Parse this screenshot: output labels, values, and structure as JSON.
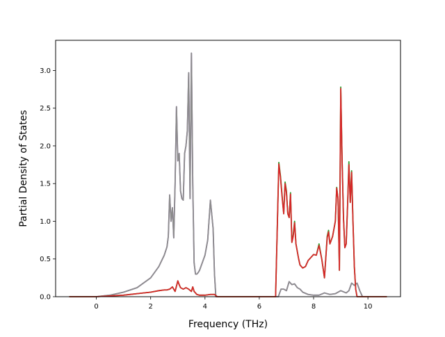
{
  "chart_data": {
    "type": "line",
    "xlabel": "Frequency (THz)",
    "ylabel": "Partial Density of States",
    "xlim": [
      -1.5,
      11.2
    ],
    "ylim": [
      0.0,
      3.4
    ],
    "xticks": [
      0,
      2,
      4,
      6,
      8,
      10
    ],
    "yticks": [
      0.0,
      0.5,
      1.0,
      1.5,
      2.0,
      2.5,
      3.0
    ],
    "xtick_labels": [
      "0",
      "2",
      "4",
      "6",
      "8",
      "10"
    ],
    "ytick_labels": [
      "0.0",
      "0.5",
      "1.0",
      "1.5",
      "2.0",
      "2.5",
      "3.0"
    ],
    "grid": false,
    "legend": "none",
    "series": [
      {
        "color": "#9467bd",
        "x": [
          -1.0,
          0.0,
          0.5,
          1.0,
          1.5,
          2.0,
          2.3,
          2.5,
          2.6,
          2.65,
          2.7,
          2.75,
          2.8,
          2.85,
          2.9,
          2.95,
          3.0,
          3.05,
          3.1,
          3.15,
          3.2,
          3.25,
          3.3,
          3.35,
          3.4,
          3.45,
          3.5,
          3.55,
          3.6,
          3.65,
          3.7,
          3.75,
          3.8,
          3.9,
          4.0,
          4.1,
          4.2,
          4.3,
          4.35,
          4.4,
          4.45,
          4.5,
          6.5,
          6.7,
          6.8,
          6.9,
          7.0,
          7.1,
          7.2,
          7.3,
          7.4,
          7.5,
          7.6,
          7.8,
          8.0,
          8.2,
          8.4,
          8.6,
          8.8,
          9.0,
          9.2,
          9.3,
          9.4,
          9.5,
          9.6,
          9.7,
          9.8,
          10.0,
          10.7
        ],
        "y": [
          0.0,
          0.0,
          0.02,
          0.06,
          0.12,
          0.25,
          0.4,
          0.55,
          0.66,
          0.8,
          1.35,
          1.0,
          1.18,
          0.78,
          1.5,
          2.52,
          1.8,
          1.9,
          1.4,
          1.3,
          1.28,
          1.9,
          2.0,
          2.2,
          2.97,
          1.3,
          3.23,
          1.5,
          0.45,
          0.3,
          0.3,
          0.32,
          0.35,
          0.45,
          0.55,
          0.75,
          1.28,
          0.9,
          0.3,
          0.0,
          0.0,
          0.0,
          0.0,
          0.0,
          0.1,
          0.1,
          0.08,
          0.2,
          0.16,
          0.17,
          0.12,
          0.1,
          0.06,
          0.03,
          0.02,
          0.02,
          0.05,
          0.03,
          0.04,
          0.08,
          0.05,
          0.08,
          0.18,
          0.15,
          0.18,
          0.08,
          0.0,
          0.0,
          0.0
        ]
      },
      {
        "color": "#8c8c8c",
        "x": [
          -1.0,
          0.0,
          0.5,
          1.0,
          1.5,
          2.0,
          2.3,
          2.5,
          2.6,
          2.65,
          2.7,
          2.75,
          2.8,
          2.85,
          2.9,
          2.95,
          3.0,
          3.05,
          3.1,
          3.15,
          3.2,
          3.25,
          3.3,
          3.35,
          3.4,
          3.45,
          3.5,
          3.55,
          3.6,
          3.65,
          3.7,
          3.75,
          3.8,
          3.9,
          4.0,
          4.1,
          4.2,
          4.3,
          4.35,
          4.4,
          4.45,
          4.5,
          6.5,
          6.7,
          6.8,
          6.9,
          7.0,
          7.1,
          7.2,
          7.3,
          7.4,
          7.5,
          7.6,
          7.8,
          8.0,
          8.2,
          8.4,
          8.6,
          8.8,
          9.0,
          9.2,
          9.3,
          9.4,
          9.5,
          9.6,
          9.7,
          9.8,
          10.0,
          10.7
        ],
        "y": [
          0.0,
          0.0,
          0.02,
          0.06,
          0.12,
          0.25,
          0.4,
          0.55,
          0.66,
          0.8,
          1.35,
          1.0,
          1.18,
          0.78,
          1.5,
          2.52,
          1.8,
          1.9,
          1.4,
          1.3,
          1.28,
          1.9,
          2.0,
          2.2,
          2.97,
          1.3,
          3.23,
          1.5,
          0.45,
          0.3,
          0.3,
          0.32,
          0.35,
          0.45,
          0.55,
          0.75,
          1.28,
          0.9,
          0.3,
          0.0,
          0.0,
          0.0,
          0.0,
          0.0,
          0.1,
          0.1,
          0.08,
          0.2,
          0.16,
          0.17,
          0.12,
          0.1,
          0.06,
          0.03,
          0.02,
          0.02,
          0.05,
          0.03,
          0.04,
          0.08,
          0.05,
          0.08,
          0.18,
          0.15,
          0.18,
          0.08,
          0.0,
          0.0,
          0.0
        ]
      },
      {
        "color": "#2ca02c",
        "x": [
          -1.0,
          0.0,
          0.5,
          1.0,
          1.5,
          2.0,
          2.3,
          2.5,
          2.6,
          2.7,
          2.8,
          2.9,
          3.0,
          3.05,
          3.1,
          3.2,
          3.3,
          3.4,
          3.5,
          3.55,
          3.6,
          3.7,
          3.8,
          4.0,
          4.2,
          4.35,
          4.45,
          6.6,
          6.72,
          6.78,
          6.85,
          6.9,
          6.95,
          7.0,
          7.05,
          7.1,
          7.15,
          7.2,
          7.25,
          7.3,
          7.35,
          7.4,
          7.45,
          7.5,
          7.6,
          7.7,
          7.8,
          7.9,
          8.0,
          8.1,
          8.2,
          8.3,
          8.4,
          8.5,
          8.55,
          8.6,
          8.7,
          8.8,
          8.85,
          8.9,
          8.95,
          9.0,
          9.05,
          9.1,
          9.15,
          9.2,
          9.25,
          9.3,
          9.35,
          9.4,
          9.45,
          9.5,
          9.55,
          9.6,
          9.65,
          9.7,
          9.75,
          9.8,
          10.0,
          10.7
        ],
        "y": [
          0.0,
          0.0,
          0.01,
          0.02,
          0.04,
          0.06,
          0.08,
          0.09,
          0.09,
          0.1,
          0.13,
          0.07,
          0.21,
          0.16,
          0.12,
          0.1,
          0.12,
          0.1,
          0.07,
          0.13,
          0.07,
          0.03,
          0.02,
          0.02,
          0.03,
          0.03,
          0.0,
          0.0,
          1.78,
          1.6,
          1.3,
          1.1,
          1.52,
          1.4,
          1.1,
          1.05,
          1.38,
          0.72,
          0.82,
          1.0,
          0.7,
          0.6,
          0.5,
          0.42,
          0.38,
          0.4,
          0.48,
          0.52,
          0.56,
          0.55,
          0.7,
          0.5,
          0.25,
          0.8,
          0.88,
          0.7,
          0.8,
          1.0,
          1.45,
          1.3,
          0.35,
          2.78,
          1.8,
          1.05,
          0.65,
          0.7,
          1.2,
          1.79,
          1.25,
          1.67,
          1.0,
          0.4,
          0.1,
          0.0,
          0.0,
          0.0,
          0.0,
          0.0,
          0.0,
          0.0
        ]
      },
      {
        "color": "#d62728",
        "x": [
          -1.0,
          0.0,
          0.5,
          1.0,
          1.5,
          2.0,
          2.3,
          2.5,
          2.6,
          2.7,
          2.8,
          2.9,
          3.0,
          3.05,
          3.1,
          3.2,
          3.3,
          3.4,
          3.5,
          3.55,
          3.6,
          3.7,
          3.8,
          4.0,
          4.2,
          4.35,
          4.45,
          6.6,
          6.72,
          6.78,
          6.85,
          6.9,
          6.95,
          7.0,
          7.05,
          7.1,
          7.15,
          7.2,
          7.25,
          7.3,
          7.35,
          7.4,
          7.45,
          7.5,
          7.6,
          7.7,
          7.8,
          7.9,
          8.0,
          8.1,
          8.2,
          8.3,
          8.4,
          8.5,
          8.55,
          8.6,
          8.7,
          8.8,
          8.85,
          8.9,
          8.95,
          9.0,
          9.05,
          9.1,
          9.15,
          9.2,
          9.25,
          9.3,
          9.35,
          9.4,
          9.45,
          9.5,
          9.55,
          9.6,
          9.65,
          9.7,
          9.75,
          9.8,
          10.0,
          10.7
        ],
        "y": [
          0.0,
          0.0,
          0.01,
          0.02,
          0.04,
          0.06,
          0.08,
          0.09,
          0.09,
          0.1,
          0.13,
          0.07,
          0.21,
          0.16,
          0.12,
          0.1,
          0.12,
          0.1,
          0.07,
          0.13,
          0.07,
          0.03,
          0.02,
          0.02,
          0.03,
          0.03,
          0.0,
          0.0,
          1.76,
          1.58,
          1.28,
          1.1,
          1.5,
          1.38,
          1.1,
          1.05,
          1.36,
          0.72,
          0.8,
          0.98,
          0.7,
          0.6,
          0.5,
          0.42,
          0.38,
          0.4,
          0.48,
          0.52,
          0.56,
          0.55,
          0.68,
          0.5,
          0.25,
          0.78,
          0.86,
          0.7,
          0.8,
          1.0,
          1.44,
          1.3,
          0.35,
          2.76,
          1.8,
          1.05,
          0.65,
          0.7,
          1.2,
          1.75,
          1.25,
          1.65,
          1.0,
          0.4,
          0.1,
          0.0,
          0.0,
          0.0,
          0.0,
          0.0,
          0.0,
          0.0
        ]
      }
    ]
  }
}
